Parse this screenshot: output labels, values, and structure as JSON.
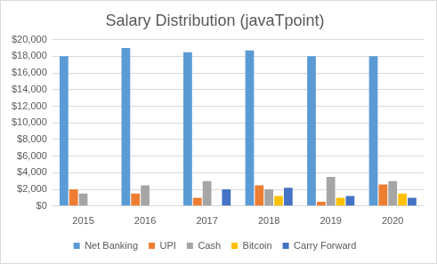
{
  "chart_data": {
    "type": "bar",
    "title": "Salary Distribution (javaTpoint)",
    "categories": [
      "2015",
      "2016",
      "2017",
      "2018",
      "2019",
      "2020"
    ],
    "series": [
      {
        "name": "Net Banking",
        "color": "#5b9bd5",
        "values": [
          18000,
          19000,
          18500,
          18700,
          18000,
          18000
        ]
      },
      {
        "name": "UPI",
        "color": "#ed7d31",
        "values": [
          2000,
          1500,
          1000,
          2500,
          500,
          2600
        ]
      },
      {
        "name": "Cash",
        "color": "#a5a5a5",
        "values": [
          1500,
          2500,
          3000,
          2000,
          3500,
          3000
        ]
      },
      {
        "name": "Bitcoin",
        "color": "#ffc000",
        "values": [
          0,
          0,
          0,
          1200,
          1000,
          1500
        ]
      },
      {
        "name": "Carry Forward",
        "color": "#4472c4",
        "values": [
          0,
          0,
          2000,
          2200,
          1200,
          1000
        ]
      }
    ],
    "ylim": [
      0,
      20000
    ],
    "yticks": [
      {
        "value": 0,
        "label": "$0"
      },
      {
        "value": 2000,
        "label": "$2,000"
      },
      {
        "value": 4000,
        "label": "$4,000"
      },
      {
        "value": 6000,
        "label": "$6,000"
      },
      {
        "value": 8000,
        "label": "$8,000"
      },
      {
        "value": 10000,
        "label": "$10,000"
      },
      {
        "value": 12000,
        "label": "$12,000"
      },
      {
        "value": 14000,
        "label": "$14,000"
      },
      {
        "value": 16000,
        "label": "$16,000"
      },
      {
        "value": 18000,
        "label": "$18,000"
      },
      {
        "value": 20000,
        "label": "$20,000"
      }
    ],
    "grid": true,
    "legend": "bottom"
  }
}
